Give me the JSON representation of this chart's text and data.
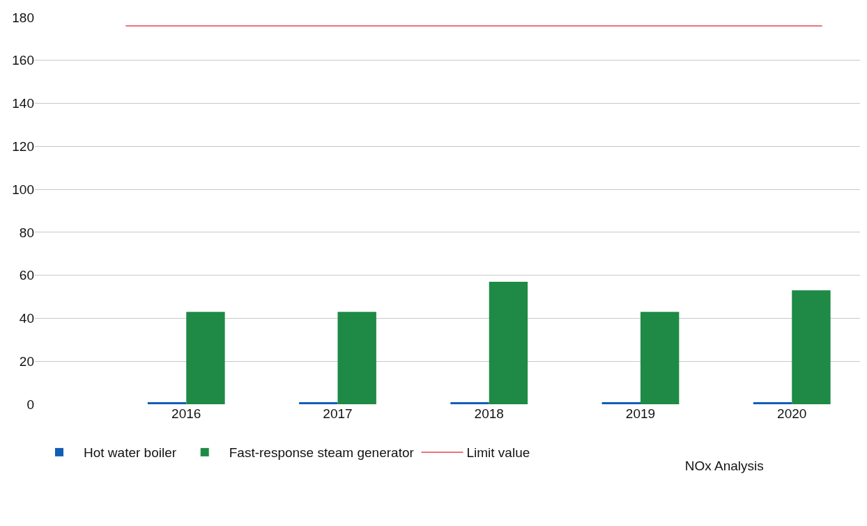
{
  "chart_data": {
    "type": "bar",
    "title": "NOx Analysis",
    "categories": [
      "2016",
      "2017",
      "2018",
      "2019",
      "2020"
    ],
    "series": [
      {
        "name": "Hot water boiler",
        "color": "#115eb6",
        "values": [
          1,
          1,
          1,
          1,
          1
        ]
      },
      {
        "name": "Fast-response steam generator",
        "color": "#1e8a45",
        "values": [
          43,
          43,
          57,
          43,
          53
        ]
      }
    ],
    "ylim": [
      0,
      180
    ],
    "yticks": [
      0,
      20,
      40,
      60,
      80,
      100,
      120,
      140,
      160,
      180
    ],
    "grid": "y",
    "legend": "bottom",
    "ref_lines": [
      {
        "axis": "y",
        "value": 176,
        "label": "Limit value",
        "color": "#e8434f"
      }
    ]
  }
}
